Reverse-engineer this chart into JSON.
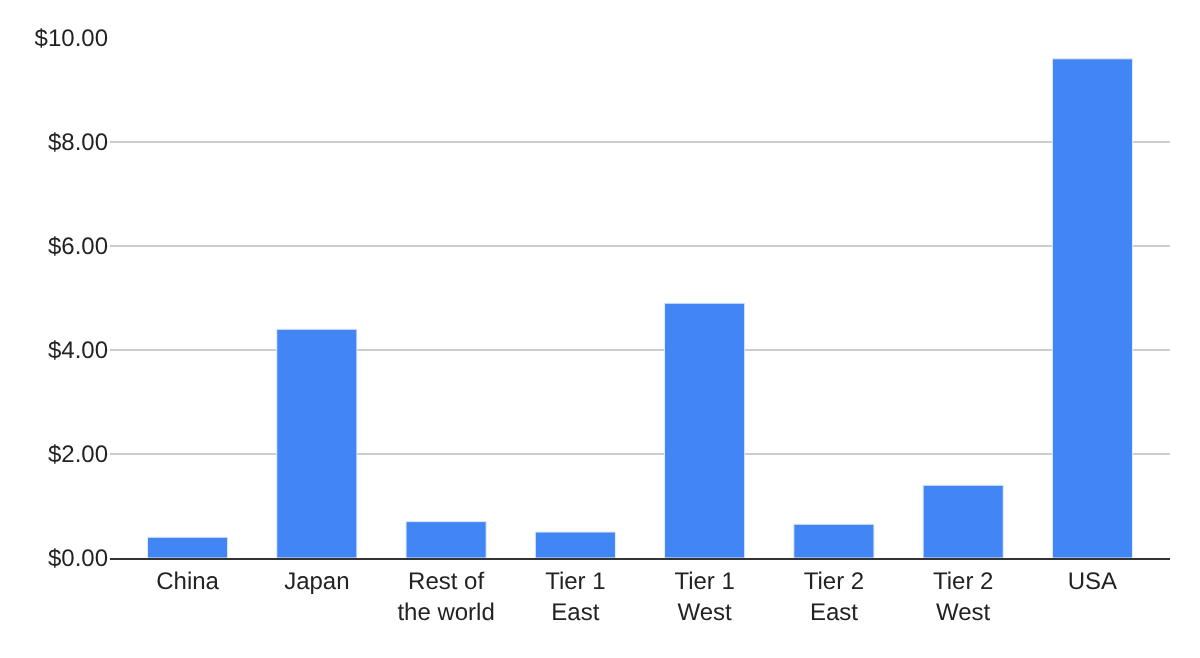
{
  "chart_data": {
    "type": "bar",
    "categories": [
      "China",
      "Japan",
      "Rest of the world",
      "Tier 1 East",
      "Tier 1 West",
      "Tier 2 East",
      "Tier 2 West",
      "USA"
    ],
    "values": [
      0.4,
      4.4,
      0.7,
      0.5,
      4.9,
      0.65,
      1.4,
      9.6
    ],
    "color": "#4285f4",
    "ylim": [
      0,
      10
    ],
    "yticks": [
      {
        "value": 0,
        "label": "$0.00"
      },
      {
        "value": 2,
        "label": "$2.00"
      },
      {
        "value": 4,
        "label": "$4.00"
      },
      {
        "value": 6,
        "label": "$6.00"
      },
      {
        "value": 8,
        "label": "$8.00"
      },
      {
        "value": 10,
        "label": "$10.00"
      }
    ],
    "grid": "y"
  }
}
